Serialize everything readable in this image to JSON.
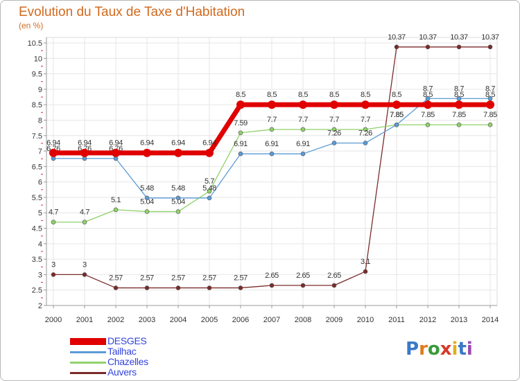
{
  "header": {
    "title": "Evolution du Taux de Taxe d'Habitation",
    "subtitle": "(en %)"
  },
  "logo": {
    "letters": [
      "P",
      "r",
      "o",
      "x",
      "i",
      "t",
      "i"
    ],
    "colors": [
      "#3a78c8",
      "#e07b1a",
      "#3a9a3a",
      "#d63a2a",
      "#e0b01a",
      "#3a78c8",
      "#9a4ab0"
    ]
  },
  "chart_data": {
    "type": "line",
    "title": "Evolution du Taux de Taxe d'Habitation",
    "subtitle": "(en %)",
    "x": [
      2000,
      2001,
      2002,
      2003,
      2004,
      2005,
      2006,
      2007,
      2008,
      2009,
      2010,
      2011,
      2012,
      2013,
      2014
    ],
    "ylim": [
      2,
      10.5
    ],
    "yticks": [
      2,
      2.5,
      3,
      3.5,
      4,
      4.5,
      5,
      5.5,
      6,
      6.5,
      7,
      7.5,
      8,
      8.5,
      9,
      9.5,
      10,
      10.5
    ],
    "grid": true,
    "legend_position": "bottom-left",
    "series": [
      {
        "name": "Auvers",
        "color": "#7b2a2a",
        "width": 1.3,
        "values": [
          3,
          3,
          2.57,
          2.57,
          2.57,
          2.57,
          2.57,
          2.65,
          2.65,
          2.65,
          3.1,
          10.37,
          10.37,
          10.37,
          10.37
        ],
        "labels": [
          "3",
          "3",
          "2.57",
          "2.57",
          "2.57",
          "2.57",
          "2.57",
          "2.65",
          "2.65",
          "2.65",
          "3.1",
          "10.37",
          "10.37",
          "10.37",
          "10.37"
        ]
      },
      {
        "name": "Chazelles",
        "color": "#8fd16a",
        "width": 1.3,
        "values": [
          4.7,
          4.7,
          5.1,
          5.04,
          5.04,
          5.7,
          7.59,
          7.7,
          7.7,
          7.7,
          7.7,
          7.85,
          7.85,
          7.85,
          7.85
        ],
        "labels": [
          "4.7",
          "4.7",
          "5.1",
          "5.04",
          "5.04",
          "5.7",
          "7.59",
          "7.7",
          "7.7",
          "7.7",
          "7.7",
          "7.85",
          "7.85",
          "7.85",
          "7.85"
        ]
      },
      {
        "name": "Tailhac",
        "color": "#5b9bd5",
        "width": 1.3,
        "values": [
          6.76,
          6.76,
          6.76,
          5.48,
          5.48,
          5.48,
          6.91,
          6.91,
          6.91,
          7.26,
          7.26,
          7.85,
          8.7,
          8.7,
          8.7
        ],
        "labels": [
          "6.76",
          "6.76",
          "6.76",
          "5.48",
          "5.48",
          "5.48",
          "6.91",
          "6.91",
          "6.91",
          "7.26",
          "7.26",
          "7.85",
          "8.7",
          "8.7",
          "8.7"
        ]
      },
      {
        "name": "DESGES",
        "color": "#e00000",
        "width": 7,
        "values": [
          6.94,
          6.94,
          6.94,
          6.94,
          6.94,
          6.94,
          8.5,
          8.5,
          8.5,
          8.5,
          8.5,
          8.5,
          8.5,
          8.5,
          8.5
        ],
        "labels": [
          "6.94",
          "6.94",
          "6.94",
          "6.94",
          "6.94",
          "6.94",
          "8.5",
          "8.5",
          "8.5",
          "8.5",
          "8.5",
          "8.5",
          "8.5",
          "8.5",
          "8.5"
        ]
      }
    ],
    "legend_order": [
      "DESGES",
      "Tailhac",
      "Chazelles",
      "Auvers"
    ]
  }
}
